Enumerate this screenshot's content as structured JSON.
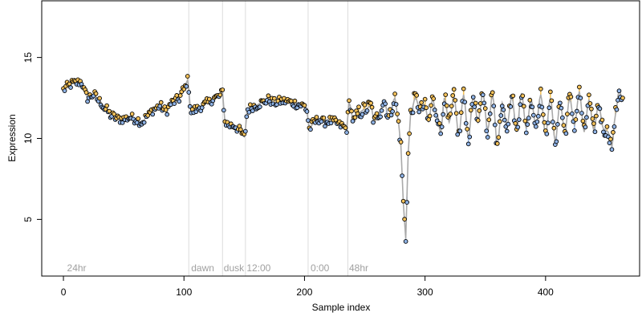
{
  "chart_data": {
    "type": "scatter",
    "title": "",
    "xlabel": "Sample index",
    "ylabel": "Expression",
    "xlim": [
      -18,
      478
    ],
    "ylim": [
      1.5,
      18.5
    ],
    "x_ticks": [
      0,
      100,
      200,
      300,
      400
    ],
    "y_ticks": [
      5,
      10,
      15
    ],
    "grid": false,
    "legend": "none",
    "colors": {
      "point_above": "#f5c25a",
      "point_below": "#8fb3e6",
      "smooth_line": "#a9a9a9",
      "vline": "#dcdcdc",
      "annotation": "#a0a0a0",
      "point_stroke": "#000000"
    },
    "annotations": [
      {
        "x": 3,
        "label": "24hr"
      },
      {
        "x": 106,
        "label": "dawn"
      },
      {
        "x": 133,
        "label": "dusk"
      },
      {
        "x": 152,
        "label": "12:00"
      },
      {
        "x": 205,
        "label": "0:00"
      },
      {
        "x": 237,
        "label": "48hr"
      }
    ],
    "vlines": [
      104,
      132,
      151,
      203,
      236
    ],
    "anchors": [
      [
        0,
        13.0
      ],
      [
        3,
        13.2
      ],
      [
        8,
        13.4
      ],
      [
        15,
        13.5
      ],
      [
        18,
        12.8
      ],
      [
        20,
        12.5
      ],
      [
        25,
        12.7
      ],
      [
        30,
        12.3
      ],
      [
        35,
        11.8
      ],
      [
        40,
        11.4
      ],
      [
        45,
        11.2
      ],
      [
        50,
        11.2
      ],
      [
        55,
        11.3
      ],
      [
        60,
        11.2
      ],
      [
        65,
        11.0
      ],
      [
        70,
        11.4
      ],
      [
        75,
        11.8
      ],
      [
        80,
        12.0
      ],
      [
        85,
        11.7
      ],
      [
        90,
        12.2
      ],
      [
        95,
        12.4
      ],
      [
        100,
        13.0
      ],
      [
        103,
        13.6
      ],
      [
        106,
        11.6
      ],
      [
        110,
        11.8
      ],
      [
        115,
        12.0
      ],
      [
        120,
        12.2
      ],
      [
        125,
        12.5
      ],
      [
        130,
        12.6
      ],
      [
        132,
        12.9
      ],
      [
        134,
        11.0
      ],
      [
        138,
        10.8
      ],
      [
        142,
        10.8
      ],
      [
        146,
        10.5
      ],
      [
        150,
        10.1
      ],
      [
        153,
        11.8
      ],
      [
        158,
        12.0
      ],
      [
        165,
        12.2
      ],
      [
        170,
        12.4
      ],
      [
        175,
        12.2
      ],
      [
        180,
        12.3
      ],
      [
        185,
        12.3
      ],
      [
        190,
        12.2
      ],
      [
        195,
        12.1
      ],
      [
        200,
        12.0
      ],
      [
        202,
        11.7
      ],
      [
        204,
        10.6
      ],
      [
        208,
        11.0
      ],
      [
        212,
        11.2
      ],
      [
        216,
        11.0
      ],
      [
        220,
        11.1
      ],
      [
        225,
        11.0
      ],
      [
        230,
        10.8
      ],
      [
        235,
        10.6
      ],
      [
        237,
        12.2
      ],
      [
        241,
        11.0
      ],
      [
        245,
        11.6
      ],
      [
        250,
        11.8
      ],
      [
        255,
        12.0
      ],
      [
        258,
        11.0
      ],
      [
        262,
        11.6
      ],
      [
        266,
        12.3
      ],
      [
        270,
        11.3
      ],
      [
        275,
        12.5
      ],
      [
        278,
        11.0
      ],
      [
        280,
        9.5
      ],
      [
        282,
        6.0
      ],
      [
        284,
        3.8
      ],
      [
        286,
        9.0
      ],
      [
        288,
        11.5
      ],
      [
        292,
        12.5
      ],
      [
        296,
        11.8
      ],
      [
        300,
        12.0
      ],
      [
        303,
        11.0
      ],
      [
        306,
        12.4
      ],
      [
        310,
        11.5
      ],
      [
        313,
        10.3
      ],
      [
        316,
        12.5
      ],
      [
        320,
        11.0
      ],
      [
        324,
        12.6
      ],
      [
        328,
        10.2
      ],
      [
        332,
        12.7
      ],
      [
        336,
        10.0
      ],
      [
        340,
        12.6
      ],
      [
        344,
        11.0
      ],
      [
        348,
        12.8
      ],
      [
        352,
        10.5
      ],
      [
        356,
        12.7
      ],
      [
        360,
        9.6
      ],
      [
        364,
        12.2
      ],
      [
        368,
        10.8
      ],
      [
        372,
        12.6
      ],
      [
        376,
        10.4
      ],
      [
        380,
        12.8
      ],
      [
        384,
        10.6
      ],
      [
        388,
        12.4
      ],
      [
        392,
        10.8
      ],
      [
        396,
        12.7
      ],
      [
        400,
        10.2
      ],
      [
        404,
        12.5
      ],
      [
        408,
        9.8
      ],
      [
        412,
        12.2
      ],
      [
        416,
        10.4
      ],
      [
        420,
        12.5
      ],
      [
        424,
        10.8
      ],
      [
        428,
        12.9
      ],
      [
        432,
        10.4
      ],
      [
        436,
        12.4
      ],
      [
        440,
        10.5
      ],
      [
        444,
        12.1
      ],
      [
        448,
        10.6
      ],
      [
        452,
        10.4
      ],
      [
        455,
        9.5
      ],
      [
        458,
        11.5
      ],
      [
        461,
        13.0
      ],
      [
        464,
        12.3
      ]
    ]
  }
}
